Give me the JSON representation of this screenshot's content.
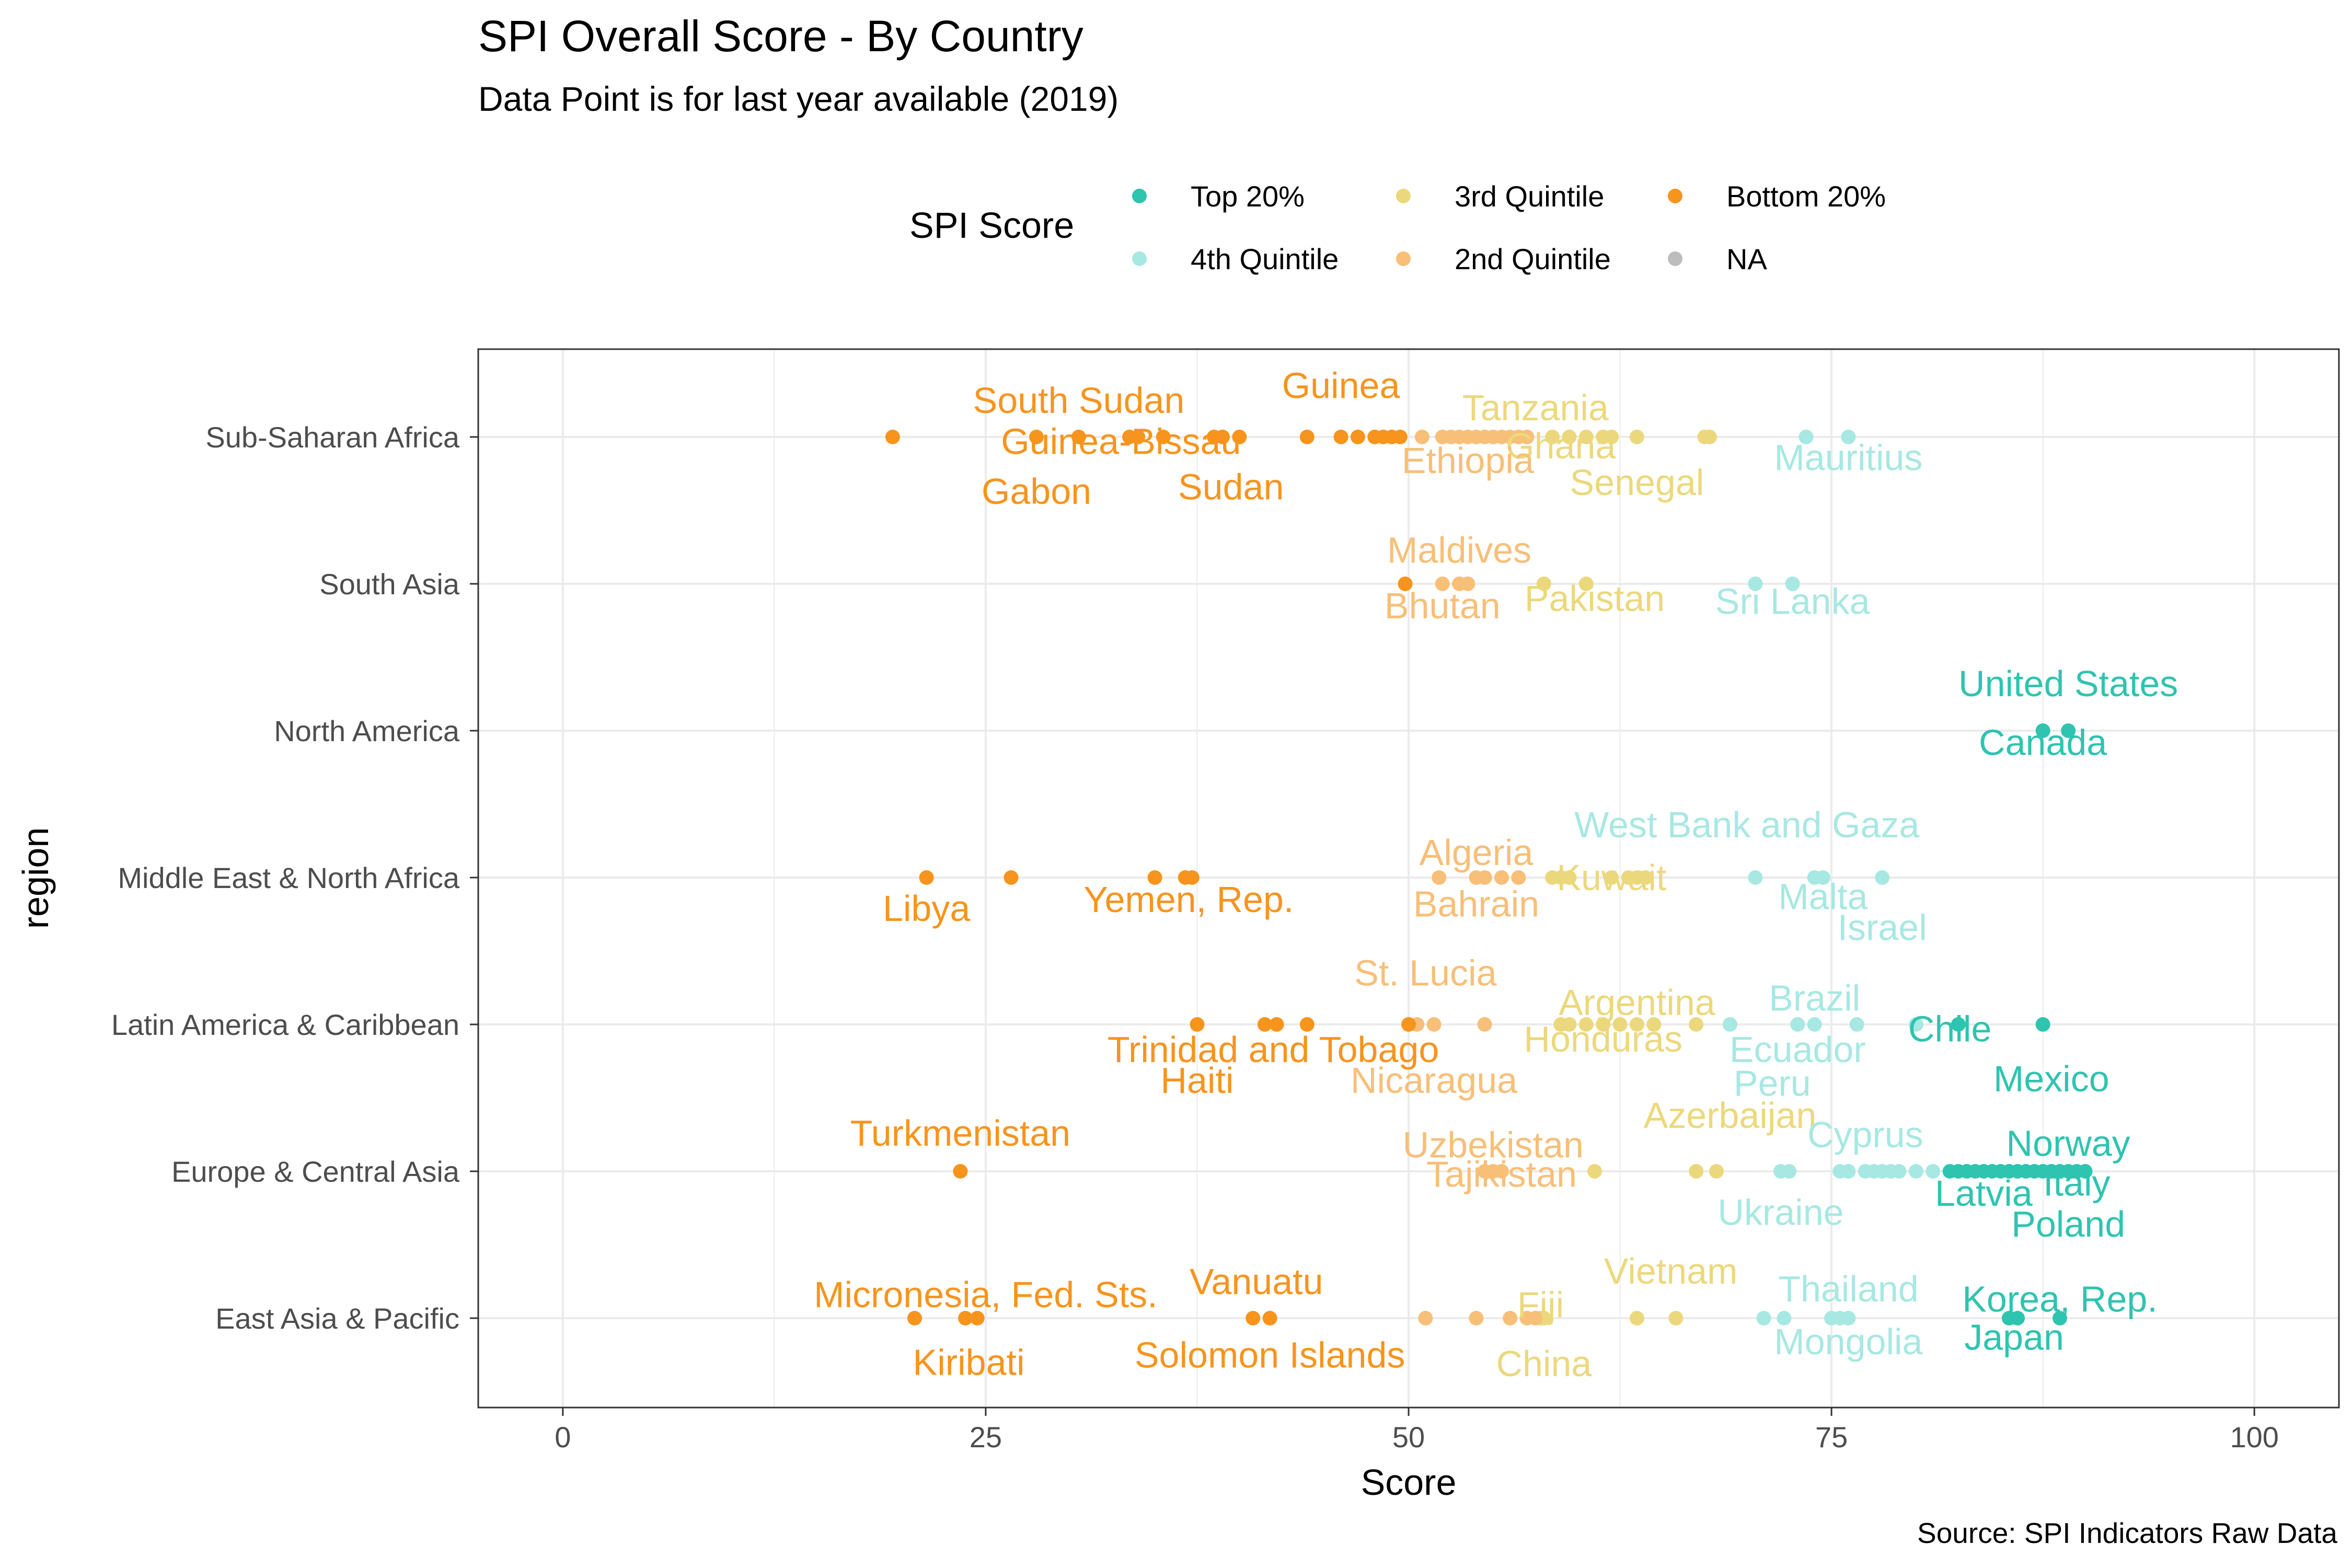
{
  "chart_data": {
    "type": "scatter",
    "title": "SPI Overall Score - By Country",
    "subtitle": "Data Point is for last year available (2019)",
    "xlabel": "Score",
    "ylabel": "region",
    "caption": "Source: SPI Indicators Raw Data",
    "xlim": [
      -5,
      105
    ],
    "xticks": [
      0,
      25,
      50,
      75,
      100
    ],
    "xtick_labels": [
      "0",
      "25",
      "50",
      "75",
      "100"
    ],
    "grid": true,
    "legend": {
      "title": "SPI Score",
      "position": "top",
      "entries": [
        {
          "name": "Top 20%",
          "color": "#2ec4b0"
        },
        {
          "name": "4th Quintile",
          "color": "#a7e8e2"
        },
        {
          "name": "3rd Quintile",
          "color": "#ecd87c"
        },
        {
          "name": "2nd Quintile",
          "color": "#f7bf78"
        },
        {
          "name": "Bottom 20%",
          "color": "#f7941d"
        },
        {
          "name": "NA",
          "color": "#bdbdbd"
        }
      ]
    },
    "categories": [
      "Sub-Saharan Africa",
      "South Asia",
      "North America",
      "Middle East & North Africa",
      "Latin America & Caribbean",
      "Europe & Central Asia",
      "East Asia & Pacific"
    ],
    "series": [
      {
        "name": "Top 20%",
        "points": [
          {
            "region": "North America",
            "x": [
              87.5,
              89.0
            ]
          },
          {
            "region": "Latin America & Caribbean",
            "x": [
              82.5,
              87.5
            ]
          },
          {
            "region": "Europe & Central Asia",
            "x": [
              82.0,
              82.5,
              83.0,
              83.5,
              84.0,
              84.5,
              85.0,
              85.5,
              86.0,
              86.5,
              87.0,
              87.5,
              88.0,
              88.5,
              89.0,
              89.5,
              90.0
            ]
          },
          {
            "region": "East Asia & Pacific",
            "x": [
              85.5,
              86.0,
              88.5
            ]
          }
        ]
      },
      {
        "name": "4th Quintile",
        "points": [
          {
            "region": "Sub-Saharan Africa",
            "x": [
              73.5,
              76.0
            ]
          },
          {
            "region": "South Asia",
            "x": [
              70.5,
              72.7
            ]
          },
          {
            "region": "Middle East & North Africa",
            "x": [
              70.5,
              74.0,
              74.5,
              78.0
            ]
          },
          {
            "region": "Latin America & Caribbean",
            "x": [
              69.0,
              73.0,
              74.0,
              76.5,
              80.0
            ]
          },
          {
            "region": "Europe & Central Asia",
            "x": [
              72.0,
              72.5,
              75.5,
              76.0,
              77.0,
              77.5,
              78.0,
              78.5,
              79.0,
              80.0,
              81.0
            ]
          },
          {
            "region": "East Asia & Pacific",
            "x": [
              71.0,
              72.2,
              75.0,
              75.5,
              76.0
            ]
          }
        ]
      },
      {
        "name": "3rd Quintile",
        "points": [
          {
            "region": "Sub-Saharan Africa",
            "x": [
              58.5,
              59.5,
              60.5,
              61.5,
              62.0,
              63.5,
              67.5,
              67.8
            ]
          },
          {
            "region": "South Asia",
            "x": [
              58.0,
              60.5
            ]
          },
          {
            "region": "Middle East & North Africa",
            "x": [
              58.5,
              59.0,
              59.5,
              62.0,
              63.0,
              63.5,
              64.0
            ]
          },
          {
            "region": "Latin America & Caribbean",
            "x": [
              59.0,
              59.5,
              60.5,
              61.5,
              62.5,
              63.5,
              64.5,
              67.0
            ]
          },
          {
            "region": "Europe & Central Asia",
            "x": [
              61.0,
              67.0,
              68.2
            ]
          },
          {
            "region": "East Asia & Pacific",
            "x": [
              57.8,
              58.0,
              63.5,
              65.8
            ]
          }
        ]
      },
      {
        "name": "2nd Quintile",
        "points": [
          {
            "region": "Sub-Saharan Africa",
            "x": [
              50.8,
              52.0,
              52.5,
              53.0,
              53.5,
              54.0,
              54.5,
              55.0,
              55.5,
              56.0,
              56.5,
              57.0
            ]
          },
          {
            "region": "South Asia",
            "x": [
              52.0,
              53.0,
              53.5
            ]
          },
          {
            "region": "Middle East & North Africa",
            "x": [
              51.8,
              54.0,
              54.5,
              55.5,
              56.5
            ]
          },
          {
            "region": "Latin America & Caribbean",
            "x": [
              50.5,
              51.5,
              54.5
            ]
          },
          {
            "region": "Europe & Central Asia",
            "x": [
              54.5,
              55.0,
              55.5
            ]
          },
          {
            "region": "East Asia & Pacific",
            "x": [
              51.0,
              54.0,
              56.0,
              57.0,
              57.5
            ]
          }
        ]
      },
      {
        "name": "Bottom 20%",
        "points": [
          {
            "region": "Sub-Saharan Africa",
            "x": [
              19.5,
              28.0,
              30.5,
              33.5,
              34.0,
              35.5,
              38.5,
              39.0,
              40.0,
              44.0,
              46.0,
              47.0,
              48.0,
              48.5,
              49.0,
              49.5
            ]
          },
          {
            "region": "South Asia",
            "x": [
              49.8
            ]
          },
          {
            "region": "Middle East & North Africa",
            "x": [
              21.5,
              26.5,
              35.0,
              36.8,
              37.2
            ]
          },
          {
            "region": "Latin America & Caribbean",
            "x": [
              37.5,
              41.5,
              42.2,
              44.0,
              50.0
            ]
          },
          {
            "region": "Europe & Central Asia",
            "x": [
              23.5
            ]
          },
          {
            "region": "East Asia & Pacific",
            "x": [
              20.8,
              23.8,
              24.5,
              40.8,
              41.8
            ]
          }
        ]
      }
    ],
    "annotations": [
      {
        "text": "South Sudan",
        "x": 30.5,
        "region": "Sub-Saharan Africa",
        "dy": -0.25,
        "group": "Bottom 20%"
      },
      {
        "text": "Guinea-Bissau",
        "x": 33.0,
        "region": "Sub-Saharan Africa",
        "dy": 0.03,
        "group": "Bottom 20%"
      },
      {
        "text": "Gabon",
        "x": 28.0,
        "region": "Sub-Saharan Africa",
        "dy": 0.37,
        "group": "Bottom 20%"
      },
      {
        "text": "Sudan",
        "x": 39.5,
        "region": "Sub-Saharan Africa",
        "dy": 0.34,
        "group": "Bottom 20%"
      },
      {
        "text": "Guinea",
        "x": 46.0,
        "region": "Sub-Saharan Africa",
        "dy": -0.35,
        "group": "Bottom 20%"
      },
      {
        "text": "Tanzania",
        "x": 57.5,
        "region": "Sub-Saharan Africa",
        "dy": -0.2,
        "group": "3rd Quintile"
      },
      {
        "text": "Ghana",
        "x": 59.0,
        "region": "Sub-Saharan Africa",
        "dy": 0.06,
        "group": "3rd Quintile"
      },
      {
        "text": "Ethiopia",
        "x": 53.5,
        "region": "Sub-Saharan Africa",
        "dy": 0.16,
        "group": "2nd Quintile"
      },
      {
        "text": "Senegal",
        "x": 63.5,
        "region": "Sub-Saharan Africa",
        "dy": 0.31,
        "group": "3rd Quintile"
      },
      {
        "text": "Mauritius",
        "x": 76.0,
        "region": "Sub-Saharan Africa",
        "dy": 0.14,
        "group": "4th Quintile"
      },
      {
        "text": "Maldives",
        "x": 53.0,
        "region": "South Asia",
        "dy": -0.23,
        "group": "2nd Quintile"
      },
      {
        "text": "Bhutan",
        "x": 52.0,
        "region": "South Asia",
        "dy": 0.15,
        "group": "2nd Quintile"
      },
      {
        "text": "Pakistan",
        "x": 61.0,
        "region": "South Asia",
        "dy": 0.1,
        "group": "3rd Quintile"
      },
      {
        "text": "Sri Lanka",
        "x": 72.7,
        "region": "South Asia",
        "dy": 0.12,
        "group": "4th Quintile"
      },
      {
        "text": "United States",
        "x": 89.0,
        "region": "North America",
        "dy": -0.32,
        "group": "Top 20%"
      },
      {
        "text": "Canada",
        "x": 87.5,
        "region": "North America",
        "dy": 0.08,
        "group": "Top 20%"
      },
      {
        "text": "West Bank and Gaza",
        "x": 70.0,
        "region": "Middle East & North Africa",
        "dy": -0.36,
        "group": "4th Quintile"
      },
      {
        "text": "Algeria",
        "x": 54.0,
        "region": "Middle East & North Africa",
        "dy": -0.17,
        "group": "2nd Quintile"
      },
      {
        "text": "Kuwait",
        "x": 62.0,
        "region": "Middle East & North Africa",
        "dy": 0.0,
        "group": "3rd Quintile"
      },
      {
        "text": "Bahrain",
        "x": 54.0,
        "region": "Middle East & North Africa",
        "dy": 0.18,
        "group": "2nd Quintile"
      },
      {
        "text": "Malta",
        "x": 74.5,
        "region": "Middle East & North Africa",
        "dy": 0.13,
        "group": "4th Quintile"
      },
      {
        "text": "Israel",
        "x": 78.0,
        "region": "Middle East & North Africa",
        "dy": 0.34,
        "group": "4th Quintile"
      },
      {
        "text": "Libya",
        "x": 21.5,
        "region": "Middle East & North Africa",
        "dy": 0.21,
        "group": "Bottom 20%"
      },
      {
        "text": "Yemen, Rep.",
        "x": 37.0,
        "region": "Middle East & North Africa",
        "dy": 0.15,
        "group": "Bottom 20%"
      },
      {
        "text": "St. Lucia",
        "x": 51.0,
        "region": "Latin America & Caribbean",
        "dy": -0.35,
        "group": "2nd Quintile"
      },
      {
        "text": "Argentina",
        "x": 63.5,
        "region": "Latin America & Caribbean",
        "dy": -0.15,
        "group": "3rd Quintile"
      },
      {
        "text": "Brazil",
        "x": 74.0,
        "region": "Latin America & Caribbean",
        "dy": -0.18,
        "group": "4th Quintile"
      },
      {
        "text": "Chile",
        "x": 82.0,
        "region": "Latin America & Caribbean",
        "dy": 0.03,
        "group": "Top 20%"
      },
      {
        "text": "Honduras",
        "x": 61.5,
        "region": "Latin America & Caribbean",
        "dy": 0.1,
        "group": "3rd Quintile"
      },
      {
        "text": "Ecuador",
        "x": 73.0,
        "region": "Latin America & Caribbean",
        "dy": 0.17,
        "group": "4th Quintile"
      },
      {
        "text": "Trinidad and Tobago",
        "x": 42.0,
        "region": "Latin America & Caribbean",
        "dy": 0.17,
        "group": "Bottom 20%"
      },
      {
        "text": "Haiti",
        "x": 37.5,
        "region": "Latin America & Caribbean",
        "dy": 0.38,
        "group": "Bottom 20%"
      },
      {
        "text": "Nicaragua",
        "x": 51.5,
        "region": "Latin America & Caribbean",
        "dy": 0.38,
        "group": "2nd Quintile"
      },
      {
        "text": "Peru",
        "x": 71.5,
        "region": "Latin America & Caribbean",
        "dy": 0.4,
        "group": "4th Quintile"
      },
      {
        "text": "Mexico",
        "x": 88.0,
        "region": "Latin America & Caribbean",
        "dy": 0.37,
        "group": "Top 20%"
      },
      {
        "text": "Azerbaijan",
        "x": 69.0,
        "region": "Europe & Central Asia",
        "dy": -0.38,
        "group": "3rd Quintile"
      },
      {
        "text": "Turkmenistan",
        "x": 23.5,
        "region": "Europe & Central Asia",
        "dy": -0.26,
        "group": "Bottom 20%"
      },
      {
        "text": "Uzbekistan",
        "x": 55.0,
        "region": "Europe & Central Asia",
        "dy": -0.18,
        "group": "2nd Quintile"
      },
      {
        "text": "Cyprus",
        "x": 77.0,
        "region": "Europe & Central Asia",
        "dy": -0.25,
        "group": "4th Quintile"
      },
      {
        "text": "Norway",
        "x": 89.0,
        "region": "Europe & Central Asia",
        "dy": -0.19,
        "group": "Top 20%"
      },
      {
        "text": "Tajikistan",
        "x": 55.5,
        "region": "Europe & Central Asia",
        "dy": 0.02,
        "group": "2nd Quintile"
      },
      {
        "text": "Italy",
        "x": 89.5,
        "region": "Europe & Central Asia",
        "dy": 0.08,
        "group": "Top 20%"
      },
      {
        "text": "Latvia",
        "x": 84.0,
        "region": "Europe & Central Asia",
        "dy": 0.15,
        "group": "Top 20%"
      },
      {
        "text": "Ukraine",
        "x": 72.0,
        "region": "Europe & Central Asia",
        "dy": 0.28,
        "group": "4th Quintile"
      },
      {
        "text": "Poland",
        "x": 89.0,
        "region": "Europe & Central Asia",
        "dy": 0.36,
        "group": "Top 20%"
      },
      {
        "text": "Vietnam",
        "x": 65.5,
        "region": "East Asia & Pacific",
        "dy": -0.32,
        "group": "3rd Quintile"
      },
      {
        "text": "Thailand",
        "x": 76.0,
        "region": "East Asia & Pacific",
        "dy": -0.2,
        "group": "4th Quintile"
      },
      {
        "text": "Vanuatu",
        "x": 41.0,
        "region": "East Asia & Pacific",
        "dy": -0.25,
        "group": "Bottom 20%"
      },
      {
        "text": "Micronesia, Fed. Sts.",
        "x": 25.0,
        "region": "East Asia & Pacific",
        "dy": -0.16,
        "group": "Bottom 20%"
      },
      {
        "text": "Korea, Rep.",
        "x": 88.5,
        "region": "East Asia & Pacific",
        "dy": -0.13,
        "group": "Top 20%"
      },
      {
        "text": "Fiji",
        "x": 57.8,
        "region": "East Asia & Pacific",
        "dy": -0.09,
        "group": "3rd Quintile"
      },
      {
        "text": "Japan",
        "x": 85.8,
        "region": "East Asia & Pacific",
        "dy": 0.13,
        "group": "Top 20%"
      },
      {
        "text": "Mongolia",
        "x": 76.0,
        "region": "East Asia & Pacific",
        "dy": 0.16,
        "group": "4th Quintile"
      },
      {
        "text": "Solomon Islands",
        "x": 41.8,
        "region": "East Asia & Pacific",
        "dy": 0.25,
        "group": "Bottom 20%"
      },
      {
        "text": "Kiribati",
        "x": 24.0,
        "region": "East Asia & Pacific",
        "dy": 0.3,
        "group": "Bottom 20%"
      },
      {
        "text": "China",
        "x": 58.0,
        "region": "East Asia & Pacific",
        "dy": 0.31,
        "group": "3rd Quintile"
      }
    ]
  }
}
